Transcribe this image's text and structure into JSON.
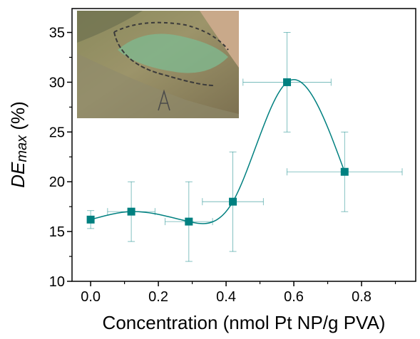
{
  "chart_data": {
    "type": "scatter",
    "xlabel": "Concentration (nmol Pt NP/g PVA)",
    "ylabel": {
      "main": "DE",
      "sub": "max",
      "unit": " (%)"
    },
    "series": [
      {
        "color": "#008080",
        "x": [
          0,
          0.12,
          0.29,
          0.42,
          0.58,
          0.75
        ],
        "values": [
          16.2,
          17,
          16,
          18,
          30,
          21
        ],
        "yerr": [
          0.9,
          3,
          4,
          5,
          5,
          4
        ],
        "xerr": [
          0,
          0.07,
          0.07,
          0.09,
          0.13,
          0.17
        ],
        "curve": "spline"
      }
    ],
    "xlim": [
      -0.055,
      0.96
    ],
    "ylim": [
      10,
      37.4
    ],
    "xticks": [
      {
        "value": 0,
        "label": "0.0"
      },
      0.2,
      0.4,
      0.6,
      0.8
    ],
    "yticks": [
      10,
      15,
      20,
      25,
      30,
      35
    ],
    "xminorticks": [
      0.1,
      0.3,
      0.5,
      0.7,
      0.9
    ],
    "yminorticks": [
      12.5,
      17.5,
      22.5,
      27.5,
      32.5
    ]
  }
}
